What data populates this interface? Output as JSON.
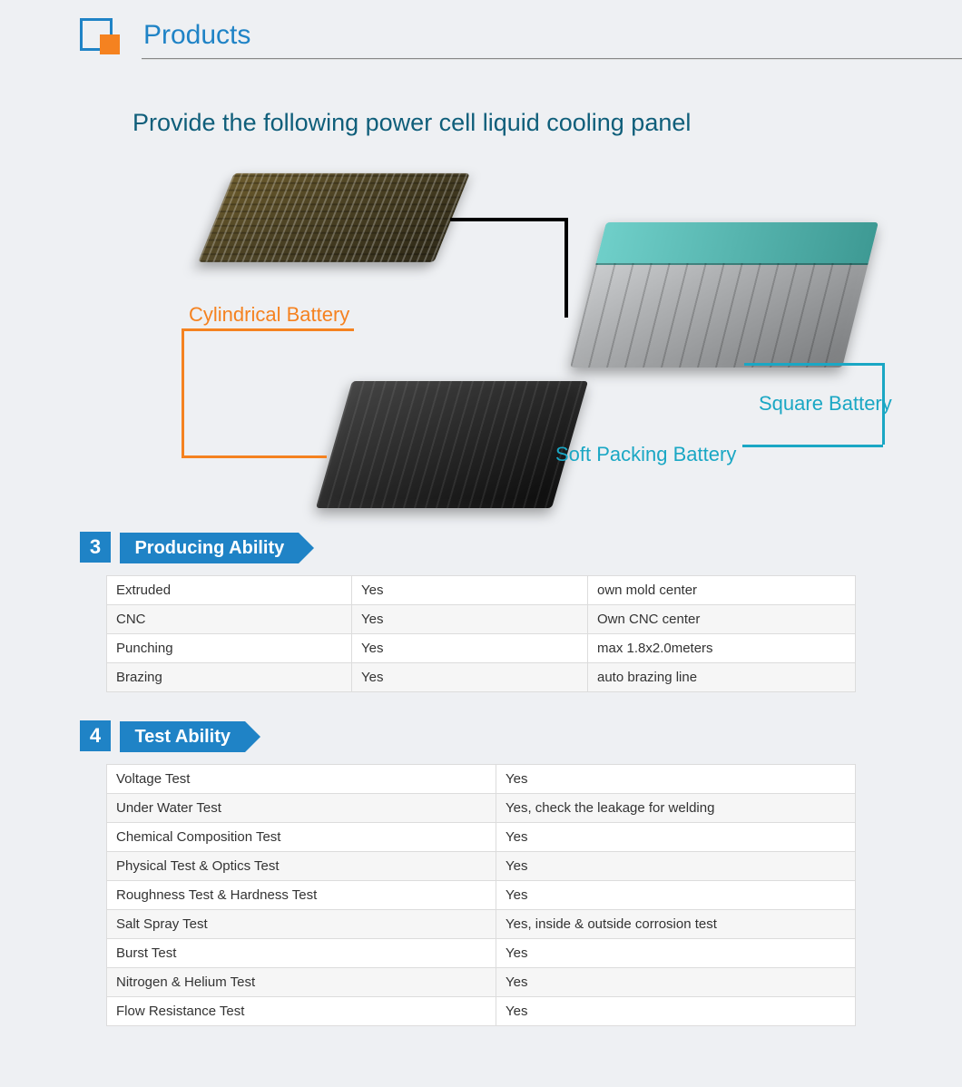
{
  "colors": {
    "accent_blue": "#1f83c6",
    "accent_orange": "#f58220",
    "cyan": "#1aa7c4",
    "black": "#000000",
    "badge_bg": "#1f83c6",
    "teal_dark": "#0f5e7a"
  },
  "header": {
    "title": "Products"
  },
  "subtitle": "Provide the following power cell liquid cooling panel",
  "diagram": {
    "cylindrical_label": "Cylindrical Battery",
    "square_label": "Square Battery",
    "soft_label": "Soft Packing Battery"
  },
  "sections": {
    "producing": {
      "num": "3",
      "title": "Producing Ability"
    },
    "test": {
      "num": "4",
      "title": "Test Ability"
    }
  },
  "producing_table": [
    [
      "Extruded",
      "Yes",
      "own mold center"
    ],
    [
      "CNC",
      "Yes",
      "Own CNC center"
    ],
    [
      "Punching",
      "Yes",
      "max 1.8x2.0meters"
    ],
    [
      "Brazing",
      "Yes",
      "auto brazing line"
    ]
  ],
  "test_table": [
    [
      "Voltage Test",
      "Yes"
    ],
    [
      "Under Water Test",
      "Yes, check the leakage for welding"
    ],
    [
      "Chemical Composition Test",
      "Yes"
    ],
    [
      "Physical Test & Optics Test",
      "Yes"
    ],
    [
      "Roughness Test & Hardness Test",
      "Yes"
    ],
    [
      "Salt Spray Test",
      "Yes, inside & outside corrosion test"
    ],
    [
      "Burst Test",
      "Yes"
    ],
    [
      "Nitrogen & Helium Test",
      "Yes"
    ],
    [
      "Flow Resistance Test",
      "Yes"
    ]
  ]
}
